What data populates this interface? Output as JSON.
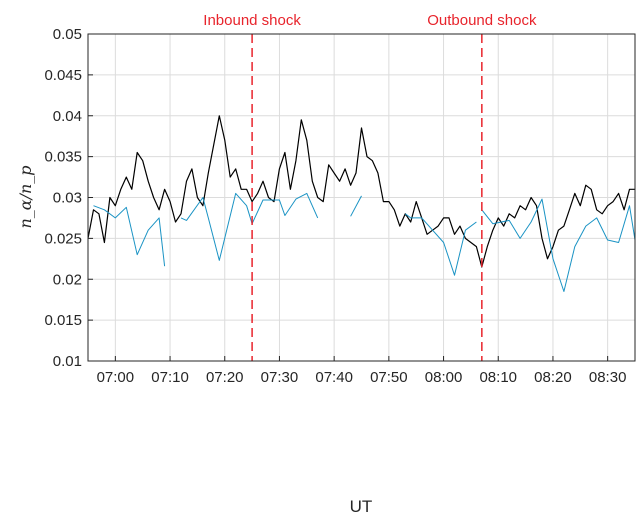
{
  "chart_data": {
    "type": "line",
    "xlabel": "UT",
    "ylabel": "n_α/n_p",
    "ylim": [
      0.01,
      0.05
    ],
    "xlim": [
      "06:55",
      "08:35"
    ],
    "grid": true,
    "y_ticks": [
      0.01,
      0.015,
      0.02,
      0.025,
      0.03,
      0.035,
      0.04,
      0.045,
      0.05
    ],
    "y_tick_labels": [
      "0.01",
      "0.015",
      "0.02",
      "0.025",
      "0.03",
      "0.035",
      "0.04",
      "0.045",
      "0.05"
    ],
    "x_ticks": [
      "07:00",
      "07:10",
      "07:20",
      "07:30",
      "07:40",
      "07:50",
      "08:00",
      "08:10",
      "08:20",
      "08:30"
    ],
    "colors": {
      "series_black": "#000000",
      "series_blue": "#1a93c4",
      "shock": "#e8242c",
      "grid": "#dcdcdc"
    },
    "annotations": [
      {
        "label": "Inbound shock",
        "time": "07:25"
      },
      {
        "label": "Outbound shock",
        "time": "08:07"
      }
    ],
    "series": [
      {
        "color": "#000000",
        "segments": [
          [
            [
              "06:55",
              0.025
            ],
            [
              "06:56",
              0.0285
            ],
            [
              "06:57",
              0.028
            ],
            [
              "06:58",
              0.0245
            ],
            [
              "06:59",
              0.03
            ],
            [
              "07:00",
              0.029
            ],
            [
              "07:01",
              0.031
            ],
            [
              "07:02",
              0.0325
            ],
            [
              "07:03",
              0.031
            ],
            [
              "07:04",
              0.0355
            ],
            [
              "07:05",
              0.0345
            ],
            [
              "07:06",
              0.032
            ],
            [
              "07:07",
              0.03
            ],
            [
              "07:08",
              0.0285
            ],
            [
              "07:09",
              0.031
            ],
            [
              "07:10",
              0.0295
            ],
            [
              "07:11",
              0.027
            ],
            [
              "07:12",
              0.028
            ],
            [
              "07:13",
              0.032
            ],
            [
              "07:14",
              0.0335
            ],
            [
              "07:15",
              0.03
            ],
            [
              "07:16",
              0.029
            ],
            [
              "07:17",
              0.033
            ],
            [
              "07:18",
              0.0365
            ],
            [
              "07:19",
              0.04
            ],
            [
              "07:20",
              0.037
            ],
            [
              "07:21",
              0.0325
            ],
            [
              "07:22",
              0.0335
            ],
            [
              "07:23",
              0.031
            ],
            [
              "07:24",
              0.031
            ],
            [
              "07:25",
              0.0295
            ],
            [
              "07:26",
              0.0305
            ],
            [
              "07:27",
              0.032
            ],
            [
              "07:28",
              0.03
            ],
            [
              "07:29",
              0.0295
            ],
            [
              "07:30",
              0.0335
            ],
            [
              "07:31",
              0.0355
            ],
            [
              "07:32",
              0.031
            ],
            [
              "07:33",
              0.0345
            ],
            [
              "07:34",
              0.0395
            ],
            [
              "07:35",
              0.037
            ],
            [
              "07:36",
              0.032
            ],
            [
              "07:37",
              0.03
            ],
            [
              "07:38",
              0.0295
            ],
            [
              "07:39",
              0.034
            ],
            [
              "07:40",
              0.033
            ],
            [
              "07:41",
              0.032
            ],
            [
              "07:42",
              0.0335
            ],
            [
              "07:43",
              0.0315
            ],
            [
              "07:44",
              0.033
            ],
            [
              "07:45",
              0.0385
            ],
            [
              "07:46",
              0.035
            ],
            [
              "07:47",
              0.0345
            ],
            [
              "07:48",
              0.033
            ],
            [
              "07:49",
              0.0295
            ],
            [
              "07:50",
              0.0295
            ],
            [
              "07:51",
              0.0285
            ],
            [
              "07:52",
              0.0265
            ],
            [
              "07:53",
              0.028
            ],
            [
              "07:54",
              0.027
            ],
            [
              "07:55",
              0.0295
            ],
            [
              "07:56",
              0.0275
            ],
            [
              "07:57",
              0.0255
            ],
            [
              "07:58",
              0.026
            ],
            [
              "07:59",
              0.0265
            ],
            [
              "08:00",
              0.0275
            ],
            [
              "08:01",
              0.0275
            ],
            [
              "08:02",
              0.0255
            ],
            [
              "08:03",
              0.0265
            ],
            [
              "08:04",
              0.025
            ],
            [
              "08:05",
              0.0245
            ],
            [
              "08:06",
              0.024
            ],
            [
              "08:07",
              0.0215
            ],
            [
              "08:08",
              0.024
            ],
            [
              "08:09",
              0.026
            ],
            [
              "08:10",
              0.0275
            ],
            [
              "08:11",
              0.0265
            ],
            [
              "08:12",
              0.028
            ],
            [
              "08:13",
              0.0275
            ],
            [
              "08:14",
              0.029
            ],
            [
              "08:15",
              0.0285
            ],
            [
              "08:16",
              0.03
            ],
            [
              "08:17",
              0.029
            ],
            [
              "08:18",
              0.025
            ],
            [
              "08:19",
              0.0225
            ],
            [
              "08:20",
              0.024
            ],
            [
              "08:21",
              0.026
            ],
            [
              "08:22",
              0.0265
            ],
            [
              "08:23",
              0.0285
            ],
            [
              "08:24",
              0.0305
            ],
            [
              "08:25",
              0.029
            ],
            [
              "08:26",
              0.0315
            ],
            [
              "08:27",
              0.031
            ],
            [
              "08:28",
              0.0285
            ],
            [
              "08:29",
              0.028
            ],
            [
              "08:30",
              0.029
            ],
            [
              "08:31",
              0.0295
            ],
            [
              "08:32",
              0.0305
            ],
            [
              "08:33",
              0.0285
            ],
            [
              "08:34",
              0.031
            ],
            [
              "08:35",
              0.031
            ]
          ]
        ]
      },
      {
        "color": "#1a93c4",
        "segments": [
          [
            [
              "06:56",
              0.029
            ],
            [
              "06:58",
              0.0285
            ],
            [
              "07:00",
              0.0275
            ],
            [
              "07:02",
              0.0288
            ],
            [
              "07:04",
              0.023
            ],
            [
              "07:06",
              0.026
            ],
            [
              "07:08",
              0.0275
            ],
            [
              "07:09",
              0.0216
            ]
          ],
          [
            [
              "07:12",
              0.0275
            ],
            [
              "07:13",
              0.0272
            ],
            [
              "07:16",
              0.03
            ],
            [
              "07:17",
              0.0275
            ],
            [
              "07:19",
              0.0223
            ],
            [
              "07:22",
              0.0305
            ],
            [
              "07:24",
              0.029
            ],
            [
              "07:25",
              0.0268
            ],
            [
              "07:27",
              0.0297
            ],
            [
              "07:30",
              0.0297
            ],
            [
              "07:31",
              0.0278
            ],
            [
              "07:33",
              0.0298
            ],
            [
              "07:35",
              0.0305
            ],
            [
              "07:37",
              0.0275
            ]
          ],
          [
            [
              "07:43",
              0.0277
            ],
            [
              "07:45",
              0.0302
            ]
          ],
          [
            [
              "07:53",
              0.028
            ],
            [
              "07:54",
              0.0275
            ],
            [
              "07:56",
              0.0275
            ],
            [
              "07:58",
              0.026
            ],
            [
              "08:00",
              0.0245
            ],
            [
              "08:02",
              0.0205
            ],
            [
              "08:04",
              0.026
            ],
            [
              "08:06",
              0.027
            ]
          ],
          [
            [
              "08:07",
              0.0285
            ],
            [
              "08:09",
              0.0268
            ],
            [
              "08:12",
              0.0272
            ],
            [
              "08:14",
              0.025
            ],
            [
              "08:16",
              0.027
            ],
            [
              "08:18",
              0.0298
            ],
            [
              "08:20",
              0.0225
            ],
            [
              "08:22",
              0.0185
            ],
            [
              "08:24",
              0.024
            ],
            [
              "08:26",
              0.0265
            ],
            [
              "08:28",
              0.0275
            ],
            [
              "08:30",
              0.0248
            ],
            [
              "08:32",
              0.0245
            ],
            [
              "08:34",
              0.029
            ],
            [
              "08:35",
              0.0248
            ]
          ]
        ]
      }
    ]
  }
}
